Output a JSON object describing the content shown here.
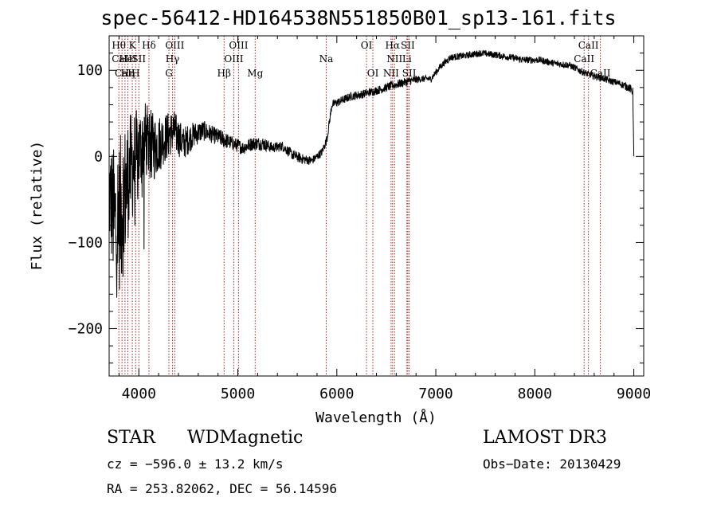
{
  "chart_data": {
    "type": "line",
    "title": "spec-56412-HD164538N551850B01_sp13-161.fits",
    "xlabel": "Wavelength (Å)",
    "ylabel": "Flux (relative)",
    "xlim": [
      3700,
      9100
    ],
    "ylim": [
      -255,
      140
    ],
    "xticks": [
      4000,
      5000,
      6000,
      7000,
      8000,
      9000
    ],
    "yticks": [
      -200,
      -100,
      0,
      100
    ],
    "xtick_labels": [
      "4000",
      "5000",
      "6000",
      "7000",
      "8000",
      "9000"
    ],
    "ytick_labels": [
      "−200",
      "−100",
      "0",
      "100"
    ],
    "series": [
      {
        "name": "flux",
        "x": [
          3700,
          3760,
          3830,
          3900,
          3980,
          4060,
          4150,
          4250,
          4350,
          4450,
          4550,
          4650,
          4750,
          4850,
          4950,
          5050,
          5150,
          5250,
          5350,
          5450,
          5550,
          5650,
          5750,
          5850,
          5900,
          5950,
          6050,
          6150,
          6250,
          6350,
          6450,
          6550,
          6650,
          6750,
          6850,
          6950,
          7050,
          7150,
          7300,
          7450,
          7600,
          7750,
          7900,
          8050,
          8200,
          8350,
          8450,
          8550,
          8650,
          8750,
          8850,
          8950,
          8990,
          9000
        ],
        "y": [
          -40,
          -80,
          -60,
          -20,
          0,
          20,
          10,
          20,
          30,
          15,
          25,
          30,
          25,
          20,
          15,
          10,
          15,
          15,
          10,
          12,
          2,
          -3,
          -5,
          5,
          20,
          60,
          65,
          70,
          72,
          75,
          78,
          82,
          85,
          88,
          90,
          90,
          105,
          115,
          117,
          120,
          118,
          115,
          112,
          112,
          108,
          106,
          100,
          95,
          92,
          88,
          85,
          80,
          75,
          0
        ],
        "noise": [
          60,
          90,
          90,
          70,
          55,
          45,
          40,
          30,
          25,
          20,
          15,
          12,
          10,
          10,
          8,
          8,
          8,
          8,
          6,
          6,
          6,
          6,
          5,
          5,
          5,
          5,
          5,
          5,
          5,
          5,
          5,
          5,
          5,
          5,
          4,
          4,
          4,
          4,
          4,
          4,
          4,
          4,
          4,
          4,
          4,
          4,
          4,
          4,
          4,
          4,
          4,
          5,
          5,
          0
        ]
      }
    ],
    "line_color": "#000000",
    "marker_color": "#b22222",
    "line_markers": [
      {
        "label": "Hθ",
        "x": 3798,
        "row": 0
      },
      {
        "label": "CaII",
        "x": 3830,
        "row": 1
      },
      {
        "label": "CaII",
        "x": 3860,
        "row": 2
      },
      {
        "label": "K",
        "x": 3934,
        "row": 0
      },
      {
        "label": "HeI",
        "x": 3889,
        "row": 1
      },
      {
        "label": "Hη",
        "x": 3889,
        "row": 2
      },
      {
        "label": "SII",
        "x": 4000,
        "row": 1
      },
      {
        "label": "H",
        "x": 3968,
        "row": 2
      },
      {
        "label": "Hδ",
        "x": 4102,
        "row": 0
      },
      {
        "label": "OIII",
        "x": 4363,
        "row": 0
      },
      {
        "label": "Hγ",
        "x": 4340,
        "row": 1
      },
      {
        "label": "G",
        "x": 4304,
        "row": 2
      },
      {
        "label": "OIII",
        "x": 5007,
        "row": 0
      },
      {
        "label": "OIII",
        "x": 4959,
        "row": 1
      },
      {
        "label": "Hβ",
        "x": 4861,
        "row": 2
      },
      {
        "label": "Mg",
        "x": 5175,
        "row": 2
      },
      {
        "label": "Na",
        "x": 5893,
        "row": 1
      },
      {
        "label": "OI",
        "x": 6300,
        "row": 0
      },
      {
        "label": "OI",
        "x": 6364,
        "row": 2
      },
      {
        "label": "Hα",
        "x": 6563,
        "row": 0
      },
      {
        "label": "SII",
        "x": 6717,
        "row": 0
      },
      {
        "label": "NII",
        "x": 6583,
        "row": 1
      },
      {
        "label": "Li",
        "x": 6708,
        "row": 1
      },
      {
        "label": "NII",
        "x": 6548,
        "row": 2
      },
      {
        "label": "SII",
        "x": 6731,
        "row": 2
      },
      {
        "label": "CaII",
        "x": 8542,
        "row": 0
      },
      {
        "label": "CaII",
        "x": 8498,
        "row": 1
      },
      {
        "label": "CaII",
        "x": 8662,
        "row": 2
      }
    ]
  },
  "info": {
    "object_class": "STAR",
    "subclass": "WDMagnetic",
    "survey": "LAMOST DR3",
    "cz": "cz = −596.0 ± 13.2 km/s",
    "obs_date": "Obs−Date: 20130429",
    "coords": "RA = 253.82062, DEC =  56.14596"
  }
}
